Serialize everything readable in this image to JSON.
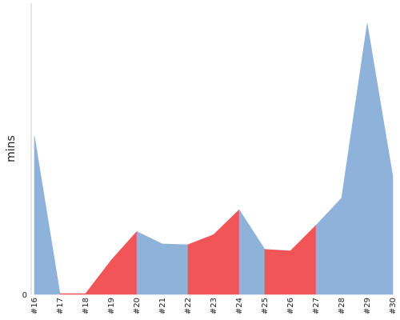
{
  "chart_data": {
    "type": "area",
    "title": "",
    "xlabel": "",
    "ylabel": "mins",
    "categories": [
      "#16",
      "#17",
      "#18",
      "#19",
      "#20",
      "#21",
      "#22",
      "#23",
      "#24",
      "#25",
      "#26",
      "#27",
      "#28",
      "#29",
      "#30"
    ],
    "values": [
      204,
      1,
      1,
      44,
      81,
      65,
      64,
      77,
      109,
      58,
      56,
      89,
      124,
      349,
      152
    ],
    "segment_colors": [
      "blue",
      "red",
      "red",
      "red",
      "blue",
      "blue",
      "red",
      "red",
      "blue",
      "red",
      "red",
      "blue",
      "blue",
      "blue"
    ],
    "colors": {
      "blue": "#8fb2da",
      "red": "#f25557"
    },
    "y_ticks": [
      "0"
    ],
    "ylim": [
      0,
      375
    ],
    "grid": false,
    "legend": "none"
  }
}
